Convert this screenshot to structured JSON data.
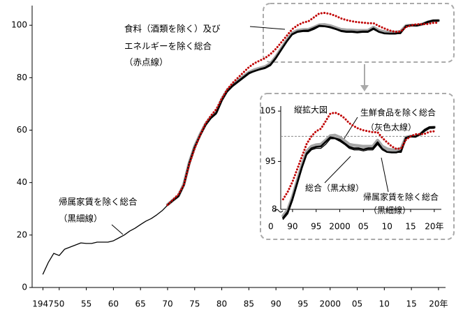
{
  "chart_data": {
    "type": "line",
    "x": [
      1947,
      1948,
      1949,
      1950,
      1951,
      1952,
      1953,
      1954,
      1955,
      1956,
      1957,
      1958,
      1959,
      1960,
      1961,
      1962,
      1963,
      1964,
      1965,
      1966,
      1967,
      1968,
      1969,
      1970,
      1971,
      1972,
      1973,
      1974,
      1975,
      1976,
      1977,
      1978,
      1979,
      1980,
      1981,
      1982,
      1983,
      1984,
      1985,
      1986,
      1987,
      1988,
      1989,
      1990,
      1991,
      1992,
      1993,
      1994,
      1995,
      1996,
      1997,
      1998,
      1999,
      2000,
      2001,
      2002,
      2003,
      2004,
      2005,
      2006,
      2007,
      2008,
      2009,
      2010,
      2011,
      2012,
      2013,
      2014,
      2015,
      2016,
      2017,
      2018,
      2019,
      2020
    ],
    "series": [
      {
        "color": "#a6a6a6",
        "width": 4.5,
        "values": [
          null,
          null,
          null,
          null,
          null,
          null,
          null,
          null,
          null,
          null,
          null,
          null,
          null,
          null,
          null,
          null,
          null,
          null,
          null,
          null,
          null,
          null,
          null,
          31.6,
          33.3,
          35,
          39.3,
          47.5,
          53.8,
          58.3,
          62.3,
          65,
          67,
          71.8,
          75.2,
          77.3,
          78.9,
          80.5,
          82,
          83,
          83.6,
          84.2,
          85.4,
          88,
          91.2,
          94.3,
          97,
          98,
          98.3,
          98.4,
          99.2,
          100.1,
          100.2,
          99.8,
          99.1,
          98.4,
          98.2,
          98.1,
          98,
          98,
          98,
          99.2,
          98,
          97.5,
          97.3,
          97.3,
          97.6,
          99.8,
          100,
          100,
          100.4,
          101.2,
          101.7,
          101.8
        ]
      },
      {
        "color": "#000000",
        "width": 2.6,
        "values": [
          null,
          null,
          null,
          null,
          null,
          null,
          null,
          null,
          null,
          null,
          null,
          null,
          null,
          null,
          null,
          null,
          null,
          null,
          null,
          null,
          null,
          null,
          null,
          31.5,
          33.2,
          34.8,
          39,
          47.3,
          53.5,
          58,
          62,
          64.7,
          66.6,
          71.4,
          74.9,
          77,
          78.6,
          80.2,
          81.8,
          82.5,
          83.2,
          83.8,
          85,
          87.6,
          90.8,
          93.9,
          96.6,
          97.6,
          97.9,
          98,
          98.9,
          99.8,
          99.6,
          99.3,
          98.6,
          97.9,
          97.6,
          97.6,
          97.4,
          97.6,
          97.6,
          98.8,
          97.5,
          96.9,
          96.8,
          96.8,
          97.1,
          99.7,
          100,
          99.9,
          100.4,
          101.3,
          101.8,
          101.8
        ]
      },
      {
        "color": "#000000",
        "width": 1.3,
        "values": [
          5.1,
          9.6,
          13,
          12.2,
          14.6,
          15.4,
          16.2,
          17,
          16.8,
          16.8,
          17.3,
          17.3,
          17.3,
          17.8,
          18.9,
          20,
          21.5,
          22.6,
          24,
          25.3,
          26.3,
          27.7,
          29.3,
          31.4,
          33,
          34.6,
          38.8,
          47,
          53.2,
          57.7,
          61.7,
          64.4,
          66.2,
          71,
          74.5,
          76.6,
          78.2,
          79.8,
          81.4,
          82.4,
          83,
          83.5,
          84.6,
          87.2,
          90.4,
          93.6,
          96.3,
          97.3,
          97.6,
          97.6,
          98.4,
          99.5,
          99.5,
          99,
          98.4,
          97.6,
          97.3,
          97.3,
          97.1,
          97.3,
          97.3,
          98.4,
          97.3,
          96.8,
          96.8,
          96.8,
          96.8,
          99.5,
          100,
          100,
          100.3,
          101,
          101.6,
          101.6
        ]
      },
      {
        "color": "#c00000",
        "width": 3,
        "dotted": true,
        "values": [
          null,
          null,
          null,
          null,
          null,
          null,
          null,
          null,
          null,
          null,
          null,
          null,
          null,
          null,
          null,
          null,
          null,
          null,
          null,
          null,
          null,
          null,
          null,
          31.5,
          33.5,
          35.5,
          39,
          47,
          53,
          58,
          62.5,
          65.5,
          68,
          72,
          75.5,
          78,
          80,
          82,
          84,
          85.5,
          86.5,
          87.5,
          89,
          91,
          93.5,
          96,
          98.5,
          100,
          101,
          101.5,
          103,
          104.5,
          104.7,
          104.3,
          103.6,
          102.6,
          102,
          101.5,
          101.2,
          101,
          100.8,
          100.8,
          99.7,
          98.8,
          98,
          97.5,
          97.6,
          99.3,
          100,
          100.4,
          100.4,
          100.5,
          100.9,
          101
        ]
      }
    ],
    "xlim": [
      1945,
      2021.3
    ],
    "ylim": [
      0,
      107.5
    ],
    "yticks": [
      0,
      20,
      40,
      60,
      80,
      100
    ],
    "xticks": [
      1947,
      {
        "value": 1950,
        "label": "50"
      },
      {
        "value": 1955,
        "label": "55"
      },
      {
        "value": 1960,
        "label": "60"
      },
      {
        "value": 1965,
        "label": "65"
      },
      {
        "value": 1970,
        "label": "70"
      },
      {
        "value": 1975,
        "label": "75"
      },
      {
        "value": 1980,
        "label": "80"
      },
      {
        "value": 1985,
        "label": "85"
      },
      {
        "value": 1990,
        "label": "90"
      },
      {
        "value": 1995,
        "label": "95"
      },
      2000,
      {
        "value": 2005,
        "label": "05"
      },
      {
        "value": 2010,
        "label": "10"
      },
      {
        "value": 2015,
        "label": "15"
      },
      {
        "value": 2020,
        "label": "20年"
      }
    ],
    "annotations": [
      "食料（酒類を除く）及び",
      "エネルギーを除く総合",
      "（赤点線）",
      "帰属家賃を除く総合",
      "（黒細線）"
    ],
    "inset": {
      "title": "縦拡大図",
      "xlim": [
        1987.5,
        2021.5
      ],
      "ylim": [
        85.5,
        106
      ],
      "yticks": [
        95,
        105
      ],
      "reference_line": 100,
      "xticks": [
        {
          "value": 1990,
          "label": "90"
        },
        {
          "value": 1995,
          "label": "95"
        },
        2000,
        {
          "value": 2005,
          "label": "05"
        },
        {
          "value": 2010,
          "label": "10"
        },
        {
          "value": 2015,
          "label": "15"
        },
        {
          "value": 2020,
          "label": "20年"
        }
      ],
      "break_labels": [
        "8",
        "0"
      ],
      "annotations": [
        "生鮮食品を除く総合",
        "（灰色太線）",
        "総合（黒太線）",
        "帰属家賃を除く総合",
        "（黒細線）"
      ]
    }
  }
}
